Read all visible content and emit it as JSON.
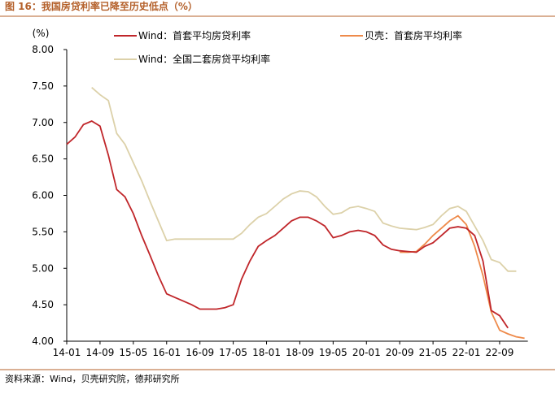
{
  "chart_data": {
    "type": "line",
    "title": "图 16：我国房贷利率已降至历史低点（%）",
    "y_label": "(%)",
    "source": "资料来源：Wind，贝壳研究院，德邦研究所",
    "categories": [
      "14-01",
      null,
      null,
      null,
      "14-09",
      null,
      null,
      null,
      "15-05",
      null,
      null,
      null,
      "16-01",
      null,
      null,
      null,
      "16-09",
      null,
      null,
      null,
      "17-05",
      null,
      null,
      null,
      "18-01",
      null,
      null,
      null,
      "18-09",
      null,
      null,
      null,
      "19-05",
      null,
      null,
      null,
      "20-01",
      null,
      null,
      null,
      "20-09",
      null,
      null,
      null,
      "21-05",
      null,
      null,
      null,
      "22-01",
      null,
      null,
      null,
      "22-09",
      null,
      null,
      null
    ],
    "series": [
      {
        "name": "Wind：首套平均房贷利率",
        "color": "#c0262a",
        "values": [
          6.7,
          6.8,
          6.97,
          7.02,
          6.95,
          6.55,
          6.08,
          5.98,
          5.75,
          5.45,
          5.18,
          4.9,
          4.65,
          4.6,
          4.55,
          4.5,
          4.44,
          4.44,
          4.44,
          4.46,
          4.5,
          4.85,
          5.1,
          5.3,
          5.38,
          5.45,
          5.55,
          5.65,
          5.7,
          5.7,
          5.65,
          5.58,
          5.42,
          5.45,
          5.5,
          5.52,
          5.5,
          5.45,
          5.32,
          5.26,
          5.24,
          5.23,
          5.22,
          5.3,
          5.35,
          5.45,
          5.55,
          5.57,
          5.55,
          5.45,
          5.1,
          4.42,
          4.35,
          4.18,
          null,
          null
        ]
      },
      {
        "name": "贝壳：首套房平均利率",
        "color": "#ee8a4a",
        "values": [
          null,
          null,
          null,
          null,
          null,
          null,
          null,
          null,
          null,
          null,
          null,
          null,
          null,
          null,
          null,
          null,
          null,
          null,
          null,
          null,
          null,
          null,
          null,
          null,
          null,
          null,
          null,
          null,
          null,
          null,
          null,
          null,
          null,
          null,
          null,
          null,
          null,
          null,
          null,
          null,
          5.22,
          5.22,
          5.23,
          5.33,
          5.45,
          5.55,
          5.65,
          5.72,
          5.6,
          5.3,
          4.9,
          4.4,
          4.15,
          4.1,
          4.06,
          4.04
        ]
      },
      {
        "name": "Wind：全国二套房贷平均利率",
        "color": "#dcd1a9",
        "values": [
          null,
          null,
          null,
          7.48,
          7.38,
          7.3,
          6.85,
          6.7,
          6.45,
          6.2,
          5.92,
          5.65,
          5.38,
          5.4,
          5.4,
          5.4,
          5.4,
          5.4,
          5.4,
          5.4,
          5.4,
          5.48,
          5.6,
          5.7,
          5.75,
          5.85,
          5.95,
          6.02,
          6.06,
          6.05,
          5.98,
          5.85,
          5.74,
          5.76,
          5.83,
          5.85,
          5.82,
          5.78,
          5.62,
          5.58,
          5.55,
          5.54,
          5.53,
          5.56,
          5.6,
          5.72,
          5.82,
          5.85,
          5.78,
          5.58,
          5.38,
          5.12,
          5.08,
          4.96,
          4.96,
          null
        ]
      }
    ],
    "ylim": [
      4,
      8
    ],
    "yticks": [
      {
        "value": 4,
        "label": "4.00"
      },
      {
        "value": 4.5,
        "label": "4.50"
      },
      {
        "value": 5,
        "label": "5.00"
      },
      {
        "value": 5.5,
        "label": "5.50"
      },
      {
        "value": 6,
        "label": "6.00"
      },
      {
        "value": 6.5,
        "label": "6.50"
      },
      {
        "value": 7,
        "label": "7.00"
      },
      {
        "value": 7.5,
        "label": "7.50"
      },
      {
        "value": 8,
        "label": "8.00"
      }
    ]
  }
}
